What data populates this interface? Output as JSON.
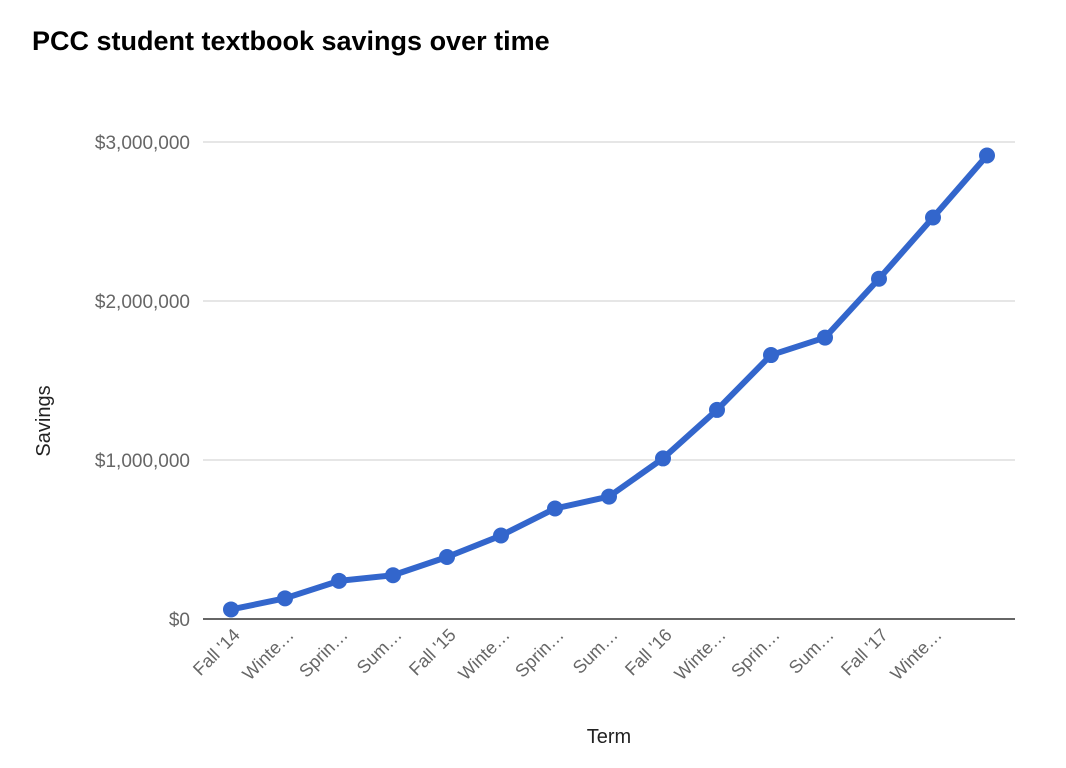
{
  "chart_data": {
    "type": "line",
    "title": "PCC student textbook savings over time",
    "xlabel": "Term",
    "ylabel": "Savings",
    "ylim": [
      0,
      3000000
    ],
    "y_ticks": [
      0,
      1000000,
      2000000,
      3000000
    ],
    "y_tick_labels": [
      "$0",
      "$1,000,000",
      "$2,000,000",
      "$3,000,000"
    ],
    "categories": [
      "Fall '14",
      "Winte…",
      "Sprin…",
      "Sum…",
      "Fall '15",
      "Winte…",
      "Sprin…",
      "Sum…",
      "Fall '16",
      "Winte…",
      "Sprin…",
      "Sum…",
      "Fall '17",
      "Winte…",
      ""
    ],
    "series": [
      {
        "values": [
          60000,
          130000,
          240000,
          275000,
          390000,
          525000,
          695000,
          770000,
          1010000,
          1315000,
          1660000,
          1770000,
          2140000,
          2525000,
          2915000
        ]
      }
    ],
    "grid": true,
    "legend": "none",
    "colors": {
      "line": "#3366cc",
      "grid": "#cccccc",
      "baseline": "#333333"
    }
  }
}
